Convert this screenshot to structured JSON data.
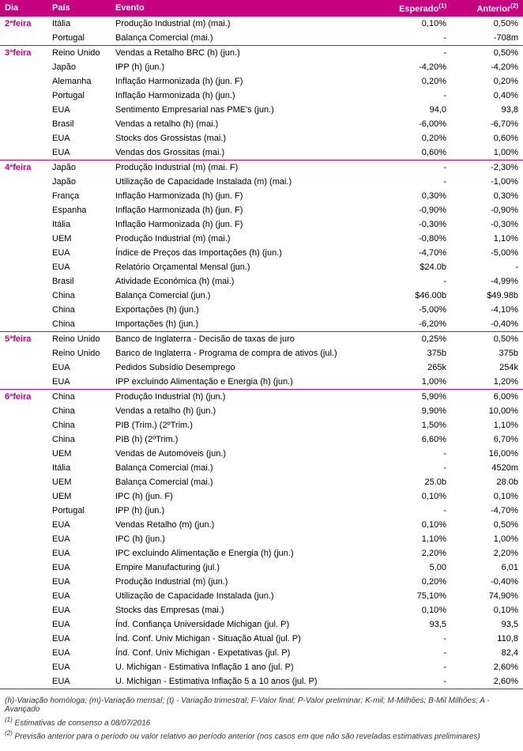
{
  "colors": {
    "accent": "#c6007e",
    "header_bg": "#c6007e",
    "header_text": "#ffffff",
    "body_text": "#000000",
    "bg": "#ffffff",
    "footnote_text": "#333333"
  },
  "columns": {
    "dia": "Dia",
    "pais": "País",
    "evento": "Evento",
    "esperado": "Esperado",
    "esperado_sup": "(1)",
    "anterior": "Anterior",
    "anterior_sup": "(2)"
  },
  "groups": [
    {
      "day": "2ªfeira",
      "rows": [
        {
          "pais": "Itália",
          "evento": "Produção Industrial (m) (mai.)",
          "esperado": "0,10%",
          "anterior": "0,50%"
        },
        {
          "pais": "Portugal",
          "evento": "Balança Comercial (mai.)",
          "esperado": "-",
          "anterior": "-708m"
        }
      ]
    },
    {
      "day": "3ªfeira",
      "rows": [
        {
          "pais": "Reino Unido",
          "evento": "Vendas a Retalho BRC (h) (jun.)",
          "esperado": "-",
          "anterior": "0,50%"
        },
        {
          "pais": "Japão",
          "evento": "IPP (h) (jun.)",
          "esperado": "-4,20%",
          "anterior": "-4,20%"
        },
        {
          "pais": "Alemanha",
          "evento": "Inflação Harmonizada (h)  (jun. F)",
          "esperado": "0,20%",
          "anterior": "0,20%"
        },
        {
          "pais": "Portugal",
          "evento": "Inflação Harmonizada (h)  (jun.)",
          "esperado": "-",
          "anterior": "0,40%"
        },
        {
          "pais": "EUA",
          "evento": "Sentimento Empresarial nas PME's (jun.)",
          "esperado": "94,0",
          "anterior": "93,8"
        },
        {
          "pais": "Brasil",
          "evento": "Vendas a retalho (h) (mai.)",
          "esperado": "-6,00%",
          "anterior": "-6,70%"
        },
        {
          "pais": "EUA",
          "evento": "Stocks dos Grossistas (mai.)",
          "esperado": "0,20%",
          "anterior": "0,60%"
        },
        {
          "pais": "EUA",
          "evento": "Vendas dos Grossitas (mai.)",
          "esperado": "0,60%",
          "anterior": "1,00%"
        }
      ]
    },
    {
      "day": "4ªfeira",
      "rows": [
        {
          "pais": "Japão",
          "evento": "Produção Industrial (m) (mai. F)",
          "esperado": "-",
          "anterior": "-2,30%"
        },
        {
          "pais": "Japão",
          "evento": "Utilização de Capacidade Instalada (m) (mai.)",
          "esperado": "-",
          "anterior": "-1,00%"
        },
        {
          "pais": "França",
          "evento": "Inflação Harmonizada (h)  (jun. F)",
          "esperado": "0,30%",
          "anterior": "0,30%"
        },
        {
          "pais": "Espanha",
          "evento": "Inflação Harmonizada (h)  (jun. F)",
          "esperado": "-0,90%",
          "anterior": "-0,90%"
        },
        {
          "pais": "Itália",
          "evento": "Inflação Harmonizada (h)  (jun. F)",
          "esperado": "-0,30%",
          "anterior": "-0,30%"
        },
        {
          "pais": "UEM",
          "evento": "Produção Industrial (m) (mai.)",
          "esperado": "-0,80%",
          "anterior": "1,10%"
        },
        {
          "pais": "EUA",
          "evento": "Índice de Preços das Importações (h) (jun.)",
          "esperado": "-4,70%",
          "anterior": "-5,00%"
        },
        {
          "pais": "EUA",
          "evento": "Relatório Orçamental Mensal (jun.)",
          "esperado": "$24.0b",
          "anterior": "-"
        },
        {
          "pais": "Brasil",
          "evento": "Atividade Económica (h) (mai.)",
          "esperado": "-",
          "anterior": "-4,99%"
        },
        {
          "pais": "China",
          "evento": "Balança Comercial (jun.)",
          "esperado": "$46.00b",
          "anterior": "$49.98b"
        },
        {
          "pais": "China",
          "evento": "Exportações (h) (jun.)",
          "esperado": "-5,00%",
          "anterior": "-4,10%"
        },
        {
          "pais": "China",
          "evento": "Importações (h) (jun.)",
          "esperado": "-6,20%",
          "anterior": "-0,40%"
        }
      ]
    },
    {
      "day": "5ªfeira",
      "rows": [
        {
          "pais": "Reino Unido",
          "evento": "Banco de Inglaterra - Decisão de taxas de juro",
          "esperado": "0,25%",
          "anterior": "0,50%"
        },
        {
          "pais": "Reino Unido",
          "evento": "Banco de Inglaterra - Programa de compra de ativos (jul.)",
          "esperado": "375b",
          "anterior": "375b"
        },
        {
          "pais": "EUA",
          "evento": "Pedidos Subsídio Desemprego",
          "esperado": "265k",
          "anterior": "254k"
        },
        {
          "pais": "EUA",
          "evento": "IPP excluindo Alimentação e Energia (h) (jun.)",
          "esperado": "1,00%",
          "anterior": "1,20%"
        }
      ]
    },
    {
      "day": "6ªfeira",
      "rows": [
        {
          "pais": "China",
          "evento": "Produção Industrial (h) (jun.)",
          "esperado": "5,90%",
          "anterior": "6,00%"
        },
        {
          "pais": "China",
          "evento": "Vendas a retalho (h) (jun.)",
          "esperado": "9,90%",
          "anterior": "10,00%"
        },
        {
          "pais": "China",
          "evento": "PIB (Trim.)  (2ºTrim.)",
          "esperado": "1,50%",
          "anterior": "1,10%"
        },
        {
          "pais": "China",
          "evento": "PIB (h) (2ºTrim.)",
          "esperado": "6,60%",
          "anterior": "6,70%"
        },
        {
          "pais": "UEM",
          "evento": "Vendas de Automóveis (jun.)",
          "esperado": "-",
          "anterior": "16,00%"
        },
        {
          "pais": "Itália",
          "evento": "Balança Comercial (mai.)",
          "esperado": "-",
          "anterior": "4520m"
        },
        {
          "pais": "UEM",
          "evento": "Balança Comercial (mai.)",
          "esperado": "25.0b",
          "anterior": "28.0b"
        },
        {
          "pais": "UEM",
          "evento": "IPC (h) (jun. F)",
          "esperado": "0,10%",
          "anterior": "0,10%"
        },
        {
          "pais": "Portugal",
          "evento": "IPP (h) (jun.)",
          "esperado": "-",
          "anterior": "-4,70%"
        },
        {
          "pais": "EUA",
          "evento": "Vendas Retalho (m) (jun.)",
          "esperado": "0,10%",
          "anterior": "0,50%"
        },
        {
          "pais": "EUA",
          "evento": "IPC (h) (jun.)",
          "esperado": "1,10%",
          "anterior": "1,00%"
        },
        {
          "pais": "EUA",
          "evento": "IPC excluindo Alimentação e Energia (h) (jun.)",
          "esperado": "2,20%",
          "anterior": "2,20%"
        },
        {
          "pais": "EUA",
          "evento": "Empire Manufacturing (jul.)",
          "esperado": "5,00",
          "anterior": "6,01"
        },
        {
          "pais": "EUA",
          "evento": "Produção Industrial (m) (jun.)",
          "esperado": "0,20%",
          "anterior": "-0,40%"
        },
        {
          "pais": "EUA",
          "evento": "Utilização de Capacidade Instalada  (jun.)",
          "esperado": "75,10%",
          "anterior": "74,90%"
        },
        {
          "pais": "EUA",
          "evento": "Stocks das Empresas (mai.)",
          "esperado": "0,10%",
          "anterior": "0,10%"
        },
        {
          "pais": "EUA",
          "evento": "Índ. Confiança Universidade Michigan (jul. P)",
          "esperado": "93,5",
          "anterior": "93,5"
        },
        {
          "pais": "EUA",
          "evento": "Índ. Conf. Univ Michigan - Situação Atual (jul. P)",
          "esperado": "-",
          "anterior": "110,8"
        },
        {
          "pais": "EUA",
          "evento": "Índ. Conf. Univ Michigan - Expetativas (jul. P)",
          "esperado": "-",
          "anterior": "82,4"
        },
        {
          "pais": "EUA",
          "evento": "U. Michigan - Estimativa Inflação 1 ano (jul. P)",
          "esperado": "-",
          "anterior": "2,60%"
        },
        {
          "pais": "EUA",
          "evento": "U. Michigan - Estimativa Inflação 5 a 10 anos (jul. P)",
          "esperado": "-",
          "anterior": "2,60%"
        }
      ]
    }
  ],
  "footnotes": {
    "legend": "(h)-Variação homóloga; (m)-Variação mensal; (t) - Variação trimestral; F-Valor final; P-Valor preliminar; K-mil; M-Milhões; B-Mil Milhões; A - Avançado",
    "n1_sup": "(1)",
    "n1": " Estimativas de consenso a 08/07/2016",
    "n2_sup": "(2)",
    "n2": " Previsão anterior para o período ou valor relativo ao período anterior (nos casos em que não são reveladas estimativas preliminares)"
  }
}
